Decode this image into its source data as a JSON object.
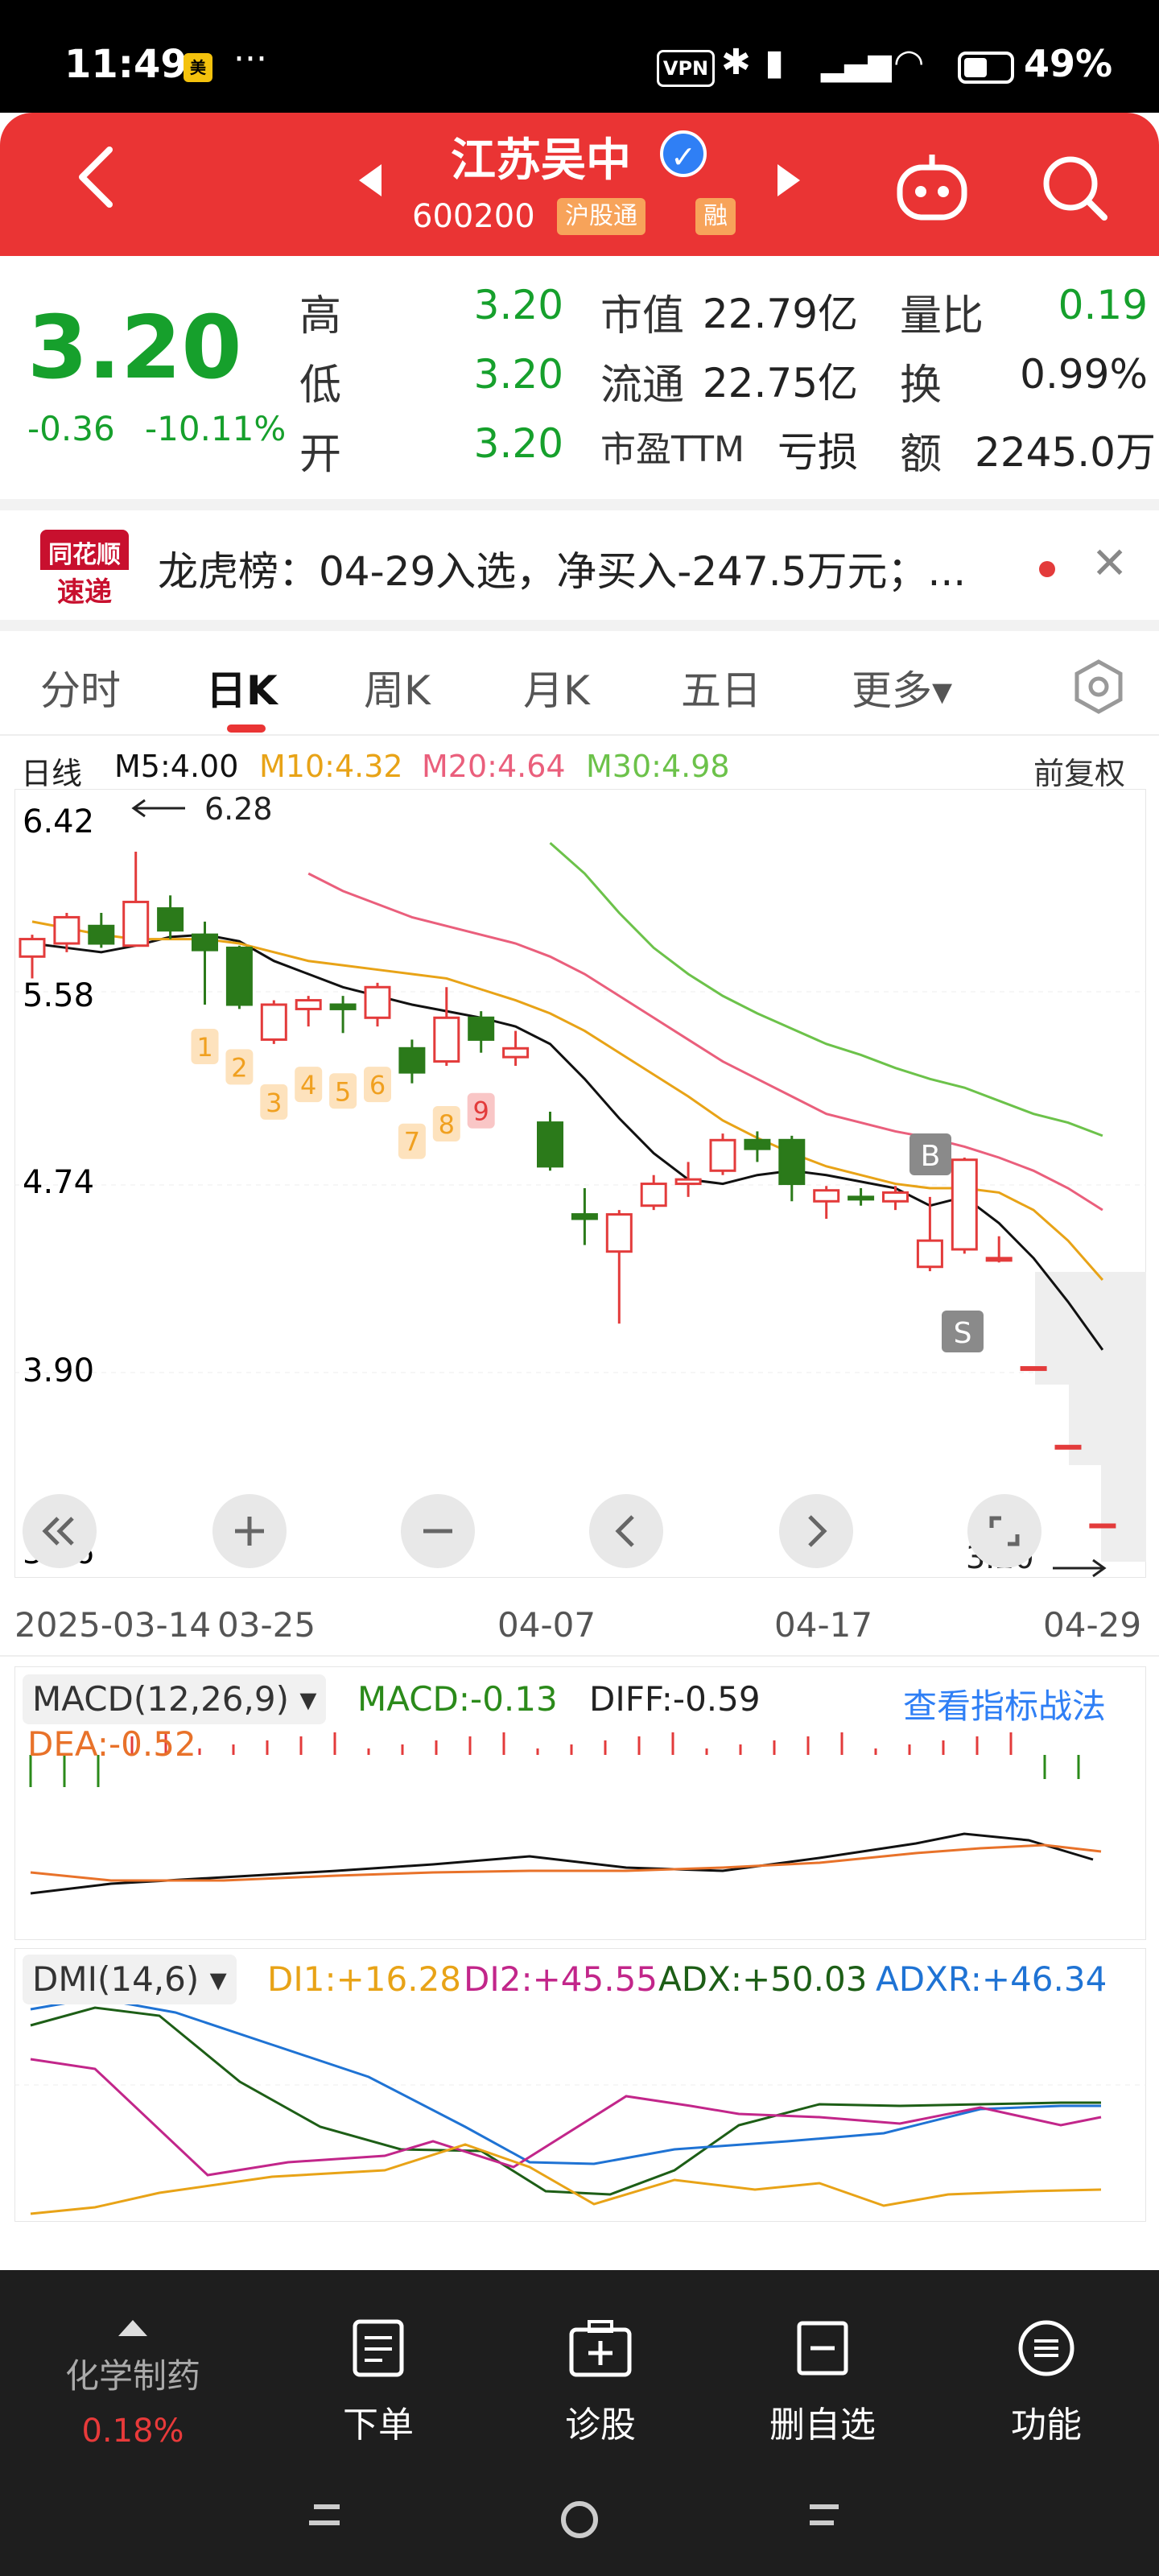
{
  "status_bar": {
    "time": "11:49",
    "app_badge": "美团",
    "dots": "···",
    "vpn": "VPN",
    "battery_pct": "49%"
  },
  "header": {
    "title": "江苏吴中",
    "code": "600200",
    "tag_connect": "沪股通",
    "tag_margin": "融"
  },
  "quote": {
    "price": "3.20",
    "change": "-0.36",
    "change_pct": "-10.11%",
    "high_label": "高",
    "high": "3.20",
    "low_label": "低",
    "low": "3.20",
    "open_label": "开",
    "open": "3.20",
    "mktcap_label": "市值",
    "mktcap": "22.79亿",
    "float_label": "流通",
    "float": "22.75亿",
    "pe_label": "市盈TTM",
    "pe": "亏损",
    "volratio_label": "量比",
    "volratio": "0.19",
    "turnover_label": "换",
    "turnover": "0.99%",
    "amount_label": "额",
    "amount": "2245.0万"
  },
  "news": {
    "logo_line1": "同花顺",
    "logo_line2": "速递",
    "text": "龙虎榜：04-29入选，净买入-247.5万元；..."
  },
  "tabs": [
    "分时",
    "日K",
    "周K",
    "月K",
    "五日",
    "更多▾"
  ],
  "legend": {
    "period": "日线",
    "m5": "M5:4.00",
    "m10": "M10:4.32",
    "m20": "M20:4.64",
    "m30": "M30:4.98",
    "adjust": "前复权"
  },
  "colors": {
    "red": "#e33b3b",
    "green": "#2b7a1a",
    "m5": "#111111",
    "m10": "#e8a317",
    "m20": "#ea5f7c",
    "m30": "#6cc24a"
  },
  "chart_data": {
    "type": "candlestick",
    "y_ticks": [
      "6.42",
      "5.58",
      "4.74",
      "3.90",
      "3.06"
    ],
    "ylim": [
      3.06,
      6.42
    ],
    "x_labels": [
      "2025-03-14",
      "03-25",
      "04-07",
      "04-17",
      "04-29"
    ],
    "max_label": "6.28",
    "last_label": "3.20",
    "buy_marker": "B",
    "sell_marker": "S",
    "seq_marks": [
      "1",
      "2",
      "3",
      "4",
      "5",
      "6",
      "7",
      "8",
      "9"
    ],
    "candles": [
      {
        "o": 5.8,
        "c": 5.88,
        "h": 5.9,
        "l": 5.7
      },
      {
        "o": 5.86,
        "c": 5.98,
        "h": 6.0,
        "l": 5.82
      },
      {
        "o": 5.94,
        "c": 5.86,
        "h": 6.0,
        "l": 5.84
      },
      {
        "o": 5.85,
        "c": 6.05,
        "h": 6.28,
        "l": 5.85
      },
      {
        "o": 6.02,
        "c": 5.92,
        "h": 6.08,
        "l": 5.88
      },
      {
        "o": 5.9,
        "c": 5.83,
        "h": 5.96,
        "l": 5.58
      },
      {
        "o": 5.84,
        "c": 5.58,
        "h": 5.85,
        "l": 5.56
      },
      {
        "o": 5.42,
        "c": 5.58,
        "h": 5.6,
        "l": 5.4
      },
      {
        "o": 5.56,
        "c": 5.6,
        "h": 5.62,
        "l": 5.48
      },
      {
        "o": 5.58,
        "c": 5.56,
        "h": 5.62,
        "l": 5.45
      },
      {
        "o": 5.52,
        "c": 5.66,
        "h": 5.68,
        "l": 5.48
      },
      {
        "o": 5.38,
        "c": 5.27,
        "h": 5.42,
        "l": 5.22
      },
      {
        "o": 5.32,
        "c": 5.52,
        "h": 5.66,
        "l": 5.3
      },
      {
        "o": 5.52,
        "c": 5.42,
        "h": 5.55,
        "l": 5.36
      },
      {
        "o": 5.34,
        "c": 5.38,
        "h": 5.46,
        "l": 5.3
      },
      {
        "o": 5.04,
        "c": 4.84,
        "h": 5.09,
        "l": 4.82
      },
      {
        "o": 4.62,
        "c": 4.6,
        "h": 4.74,
        "l": 4.48
      },
      {
        "o": 4.45,
        "c": 4.62,
        "h": 4.64,
        "l": 4.12
      },
      {
        "o": 4.66,
        "c": 4.76,
        "h": 4.8,
        "l": 4.64
      },
      {
        "o": 4.76,
        "c": 4.78,
        "h": 4.86,
        "l": 4.7
      },
      {
        "o": 4.82,
        "c": 4.96,
        "h": 4.99,
        "l": 4.8
      },
      {
        "o": 4.96,
        "c": 4.92,
        "h": 5.0,
        "l": 4.86
      },
      {
        "o": 4.96,
        "c": 4.76,
        "h": 4.98,
        "l": 4.68
      },
      {
        "o": 4.68,
        "c": 4.73,
        "h": 4.75,
        "l": 4.6
      },
      {
        "o": 4.7,
        "c": 4.69,
        "h": 4.74,
        "l": 4.66
      },
      {
        "o": 4.68,
        "c": 4.72,
        "h": 4.75,
        "l": 4.64
      },
      {
        "o": 4.38,
        "c": 4.5,
        "h": 4.7,
        "l": 4.36
      },
      {
        "o": 4.46,
        "c": 4.87,
        "h": 4.88,
        "l": 4.44
      },
      {
        "o": 4.42,
        "c": 4.42,
        "h": 4.52,
        "l": 4.4
      },
      {
        "o": 3.92,
        "c": 3.92,
        "h": 3.92,
        "l": 3.92
      },
      {
        "o": 3.56,
        "c": 3.56,
        "h": 3.56,
        "l": 3.56
      },
      {
        "o": 3.2,
        "c": 3.2,
        "h": 3.2,
        "l": 3.2
      }
    ],
    "m5": [
      5.86,
      5.84,
      5.82,
      5.85,
      5.89,
      5.9,
      5.87,
      5.78,
      5.72,
      5.66,
      5.62,
      5.58,
      5.55,
      5.52,
      5.48,
      5.4,
      5.24,
      5.06,
      4.9,
      4.78,
      4.76,
      4.8,
      4.82,
      4.8,
      4.77,
      4.74,
      4.66,
      4.7,
      4.58,
      4.42,
      4.22,
      4.0
    ],
    "m10": [
      5.96,
      5.93,
      5.9,
      5.88,
      5.88,
      5.88,
      5.86,
      5.82,
      5.78,
      5.76,
      5.74,
      5.72,
      5.7,
      5.65,
      5.6,
      5.54,
      5.46,
      5.36,
      5.26,
      5.16,
      5.05,
      4.97,
      4.9,
      4.84,
      4.8,
      4.76,
      4.74,
      4.74,
      4.72,
      4.64,
      4.5,
      4.32
    ],
    "m20": [
      null,
      null,
      null,
      null,
      null,
      null,
      null,
      null,
      6.18,
      6.1,
      6.04,
      5.98,
      5.94,
      5.9,
      5.86,
      5.8,
      5.72,
      5.62,
      5.52,
      5.42,
      5.32,
      5.24,
      5.16,
      5.08,
      5.04,
      5.0,
      4.97,
      4.93,
      4.88,
      4.82,
      4.74,
      4.64
    ],
    "m30": [
      null,
      null,
      null,
      null,
      null,
      null,
      null,
      null,
      null,
      null,
      null,
      null,
      null,
      null,
      null,
      6.32,
      6.18,
      6.0,
      5.84,
      5.72,
      5.62,
      5.54,
      5.47,
      5.4,
      5.35,
      5.29,
      5.24,
      5.2,
      5.14,
      5.08,
      5.04,
      4.98
    ]
  },
  "macd": {
    "label": "MACD(12,26,9)",
    "macd": "MACD:-0.13",
    "diff": "DIFF:-0.59",
    "dea": "DEA:-0.52",
    "link": "查看指标战法"
  },
  "dmi": {
    "label": "DMI(14,6)",
    "di1": "DI1:+16.28",
    "di2": "DI2:+45.55",
    "adx": "ADX:+50.03",
    "adxr": "ADXR:+46.34"
  },
  "bottom": {
    "sector": "化学制药",
    "sector_pct": "0.18%",
    "order": "下单",
    "diagnose": "诊股",
    "remove": "删自选",
    "function": "功能"
  }
}
